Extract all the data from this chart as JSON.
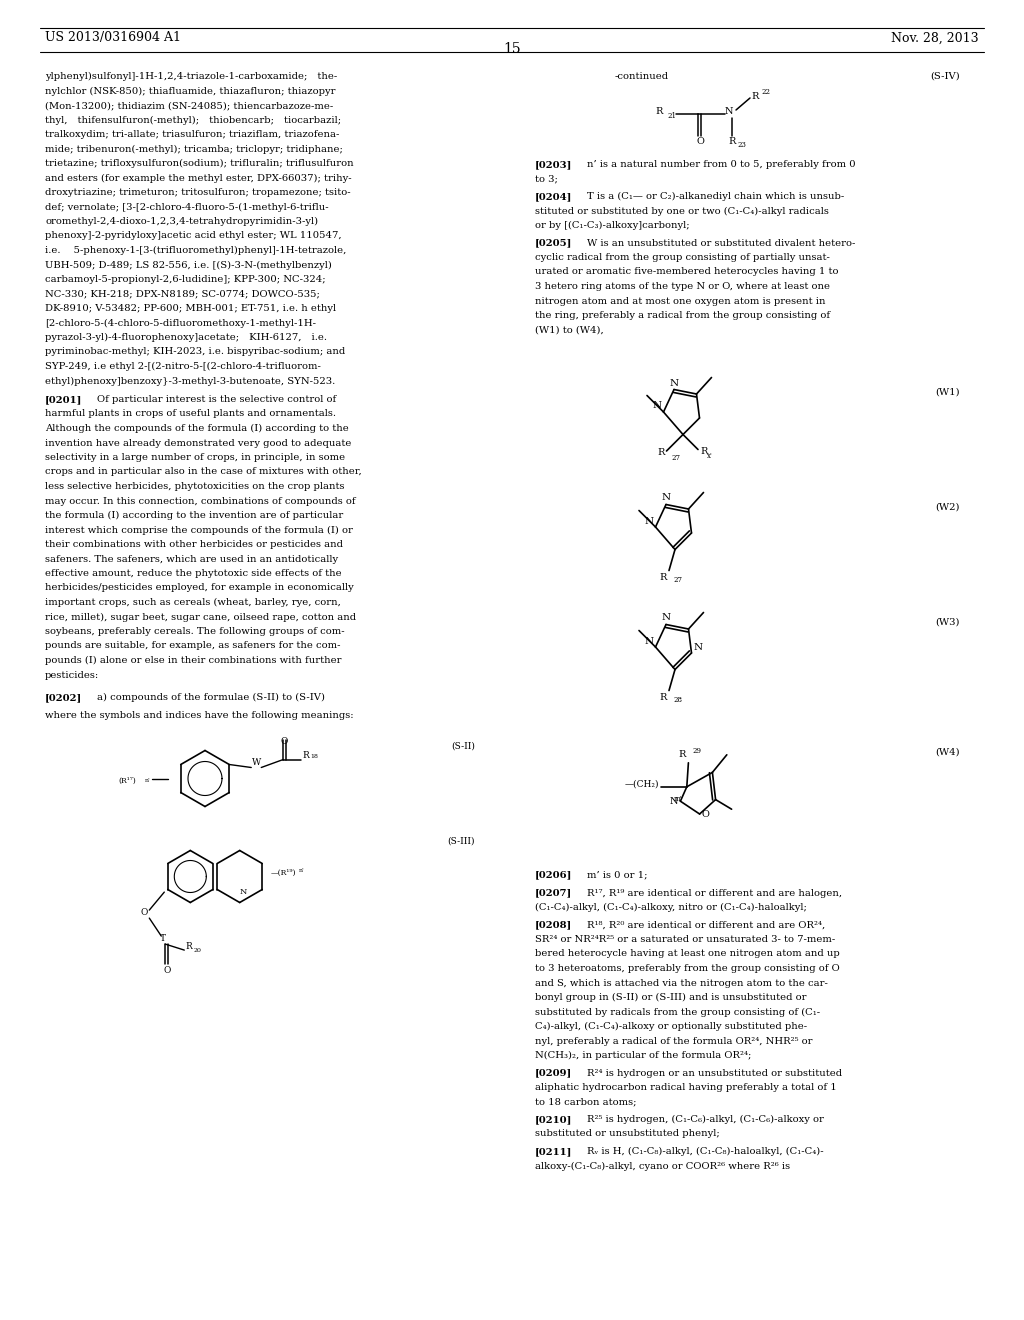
{
  "bg": "#ffffff",
  "header_left": "US 2013/0316904 A1",
  "header_right": "Nov. 28, 2013",
  "page_num": "15"
}
